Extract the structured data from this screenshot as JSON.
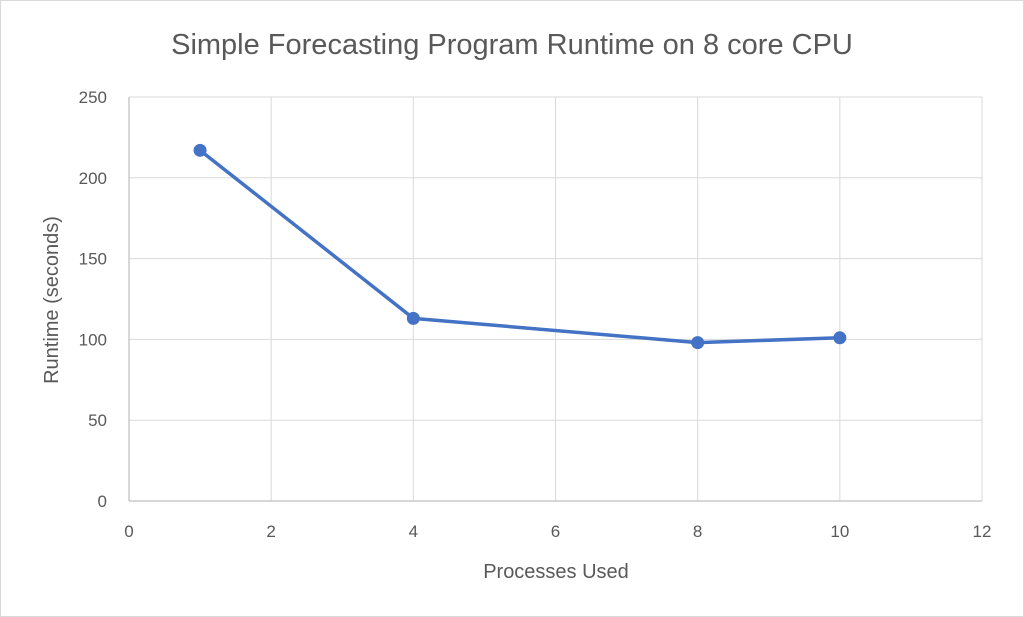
{
  "chart_data": {
    "type": "scatter",
    "title": "Simple Forecasting Program Runtime on 8 core CPU",
    "xlabel": "Processes Used",
    "ylabel": "Runtime (seconds)",
    "xlim": [
      0,
      12
    ],
    "ylim": [
      0,
      250
    ],
    "x_ticks": [
      "0",
      "2",
      "4",
      "6",
      "8",
      "10",
      "12"
    ],
    "y_ticks": [
      "0",
      "50",
      "100",
      "150",
      "200",
      "250"
    ],
    "grid": true,
    "legend": "none",
    "series": [
      {
        "color": "#4472c4",
        "x": [
          1,
          4,
          8,
          10
        ],
        "y": [
          217,
          113,
          98,
          101
        ],
        "mode": "lines+markers"
      }
    ]
  }
}
